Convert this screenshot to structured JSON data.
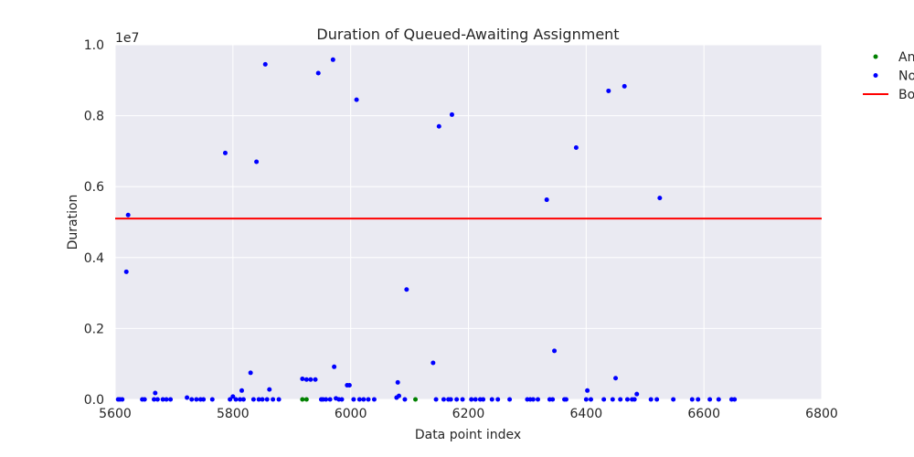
{
  "chart_data": {
    "type": "scatter",
    "title": "Duration of Queued-Awaiting Assignment",
    "xlabel": "Data point index",
    "ylabel": "Duration",
    "y_offset_text": "1e7",
    "xlim": [
      5600,
      6800
    ],
    "ylim": [
      0,
      10000000
    ],
    "x_ticks": [
      5600,
      5800,
      6000,
      6200,
      6400,
      6600,
      6800
    ],
    "x_tick_labels": [
      "5600",
      "5800",
      "6000",
      "6200",
      "6400",
      "6600",
      "6800"
    ],
    "y_ticks": [
      0,
      2000000,
      4000000,
      6000000,
      8000000,
      10000000
    ],
    "y_tick_labels": [
      "0.0",
      "0.2",
      "0.4",
      "0.6",
      "0.8",
      "1.0"
    ],
    "grid": true,
    "legend_position": "upper-right-outside",
    "series": [
      {
        "name": "An",
        "color": "#008000",
        "marker": "point",
        "x": [
          5918,
          5925,
          6110
        ],
        "y": [
          0,
          0,
          0
        ]
      },
      {
        "name": "No",
        "color": "#0000ff",
        "marker": "point",
        "x": [
          5605,
          5608,
          5612,
          5619,
          5622,
          5646,
          5650,
          5666,
          5668,
          5672,
          5681,
          5687,
          5694,
          5722,
          5730,
          5738,
          5745,
          5750,
          5765,
          5787,
          5795,
          5800,
          5805,
          5812,
          5815,
          5818,
          5830,
          5835,
          5840,
          5844,
          5850,
          5855,
          5858,
          5862,
          5868,
          5878,
          5918,
          5925,
          5932,
          5940,
          5945,
          5950,
          5953,
          5958,
          5965,
          5970,
          5972,
          5975,
          5980,
          5985,
          5994,
          5998,
          6005,
          6010,
          6015,
          6022,
          6030,
          6040,
          6078,
          6080,
          6082,
          6092,
          6095,
          6140,
          6145,
          6150,
          6158,
          6166,
          6170,
          6172,
          6180,
          6190,
          6205,
          6212,
          6220,
          6225,
          6240,
          6250,
          6270,
          6300,
          6305,
          6310,
          6318,
          6333,
          6338,
          6343,
          6346,
          6363,
          6366,
          6383,
          6400,
          6402,
          6408,
          6430,
          6438,
          6445,
          6450,
          6458,
          6465,
          6470,
          6478,
          6482,
          6486,
          6510,
          6520,
          6525,
          6548,
          6580,
          6590,
          6610,
          6625,
          6647,
          6652
        ],
        "y": [
          0,
          0,
          0,
          3600000,
          5200000,
          0,
          0,
          0,
          180000,
          0,
          0,
          0,
          0,
          50000,
          0,
          0,
          0,
          0,
          0,
          6950000,
          0,
          80000,
          0,
          0,
          250000,
          0,
          750000,
          0,
          6700000,
          0,
          0,
          9450000,
          0,
          280000,
          0,
          0,
          580000,
          560000,
          560000,
          560000,
          9200000,
          0,
          0,
          0,
          0,
          9580000,
          920000,
          30000,
          0,
          0,
          400000,
          400000,
          0,
          8450000,
          0,
          0,
          0,
          0,
          50000,
          480000,
          100000,
          0,
          3100000,
          1030000,
          0,
          7700000,
          0,
          0,
          0,
          8030000,
          0,
          0,
          0,
          0,
          0,
          0,
          0,
          0,
          0,
          0,
          0,
          0,
          0,
          5630000,
          0,
          0,
          1370000,
          0,
          0,
          7100000,
          0,
          250000,
          0,
          0,
          8700000,
          0,
          600000,
          0,
          8830000,
          0,
          0,
          0,
          150000,
          0,
          0,
          5680000,
          0,
          0,
          0,
          0,
          0,
          0,
          0
        ]
      },
      {
        "name": "Bo",
        "color": "#ff0000",
        "marker": "line",
        "type": "hline",
        "y": 5100000
      }
    ]
  }
}
